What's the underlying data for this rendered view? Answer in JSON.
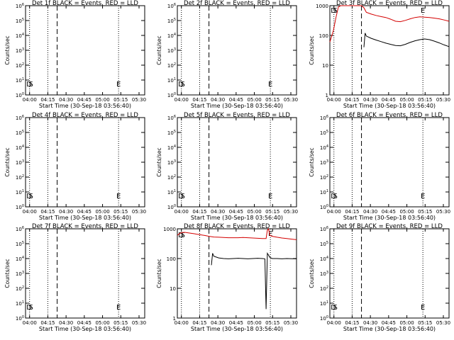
{
  "chart_data": {
    "type": "line",
    "layout": "3x3 grid of panels",
    "colors": {
      "events": "#000000",
      "lld": "#d40000"
    },
    "xlabel": "Start Time (30-Sep-18 03:56:40)",
    "ylabel": "Counts/sec",
    "x_ticks": [
      "04:00",
      "04:15",
      "04:30",
      "04:45",
      "05:00",
      "05:15",
      "05:30"
    ],
    "x_tick_minutes": [
      3.33,
      18.33,
      33.33,
      48.33,
      63.33,
      78.33,
      93.33
    ],
    "xlim_minutes_after_start": [
      0,
      98
    ],
    "legend_text": "BLACK = Events, RED = LLD",
    "markers": {
      "dashed_line_minutes": [
        26.0
      ],
      "dotted_line_minutes": [
        3.33,
        18.33,
        76.5
      ],
      "labels": [
        {
          "text": "D",
          "minute": 3.0,
          "note": "start marker (D/S)"
        },
        {
          "text": "S",
          "minute": 4.5
        },
        {
          "text": "E",
          "minute": 76.5
        }
      ]
    },
    "empty_panel_y": {
      "yscale": "log",
      "ylim": [
        1,
        1000000
      ],
      "ticks": [
        "10^0",
        "10^1",
        "10^2",
        "10^3",
        "10^4",
        "10^5",
        "10^6"
      ],
      "tick_values": [
        1,
        10,
        100,
        1000,
        10000,
        100000,
        1000000
      ]
    },
    "data_panel_y": {
      "yscale": "log",
      "ylim": [
        1,
        1000
      ],
      "ticks": [
        "1",
        "10",
        "100",
        "1000"
      ],
      "tick_values": [
        1,
        10,
        100,
        1000
      ]
    },
    "panels": [
      {
        "title": "Det 1f BLACK = Events, RED = LLD",
        "has_data": false,
        "series": []
      },
      {
        "title": "Det 2f BLACK = Events, RED = LLD",
        "has_data": false,
        "series": []
      },
      {
        "title": "Det 3f BLACK = Events, RED = LLD",
        "has_data": true,
        "series": [
          {
            "name": "LLD",
            "color": "red",
            "x": [
              0,
              3,
              5,
              7,
              9,
              11,
              13,
              15,
              17,
              19,
              21,
              23,
              25,
              26,
              28,
              30,
              34,
              38,
              42,
              46,
              50,
              54,
              58,
              62,
              66,
              70,
              74,
              78,
              82,
              86,
              90,
              94,
              98
            ],
            "y": [
              60,
              150,
              400,
              900,
              1000,
              1000,
              1000,
              1000,
              1000,
              1000,
              1000,
              1000,
              1000,
              1000,
              850,
              600,
              520,
              470,
              430,
              400,
              350,
              300,
              290,
              320,
              360,
              400,
              420,
              410,
              400,
              380,
              360,
              330,
              300
            ]
          },
          {
            "name": "Events",
            "color": "black",
            "x": [
              28,
              29,
              30,
              34,
              38,
              42,
              46,
              50,
              54,
              58,
              62,
              66,
              70,
              74,
              78,
              82,
              86,
              90,
              94,
              98
            ],
            "y": [
              40,
              120,
              95,
              80,
              70,
              62,
              55,
              50,
              46,
              45,
              50,
              58,
              66,
              72,
              76,
              72,
              64,
              56,
              48,
              42
            ]
          }
        ]
      },
      {
        "title": "Det 4f BLACK = Events, RED = LLD",
        "has_data": false,
        "series": []
      },
      {
        "title": "Det 5f BLACK = Events, RED = LLD",
        "has_data": false,
        "series": []
      },
      {
        "title": "Det 6f BLACK = Events, RED = LLD",
        "has_data": false,
        "series": []
      },
      {
        "title": "Det 7f BLACK = Events, RED = LLD",
        "has_data": false,
        "series": []
      },
      {
        "title": "Det 8f BLACK = Events, RED = LLD",
        "has_data": true,
        "series": [
          {
            "name": "LLD",
            "color": "red",
            "x": [
              0,
              2,
              4,
              6,
              8,
              10,
              12,
              14,
              16,
              18,
              20,
              22,
              24,
              26,
              30,
              34,
              38,
              42,
              46,
              50,
              54,
              58,
              62,
              66,
              70,
              73,
              74,
              75,
              76,
              78,
              82,
              86,
              90,
              94,
              98
            ],
            "y": [
              600,
              700,
              750,
              760,
              740,
              720,
              700,
              680,
              660,
              640,
              620,
              600,
              580,
              560,
              530,
              520,
              510,
              500,
              500,
              500,
              510,
              500,
              490,
              480,
              470,
              470,
              900,
              1000,
              600,
              560,
              520,
              490,
              470,
              450,
              430
            ]
          },
          {
            "name": "Events",
            "color": "black",
            "x": [
              28,
              29,
              30,
              34,
              38,
              42,
              46,
              50,
              54,
              58,
              62,
              66,
              70,
              72,
              73,
              74,
              75,
              76,
              78,
              82,
              86,
              90,
              94,
              98
            ],
            "y": [
              60,
              150,
              120,
              105,
              100,
              98,
              100,
              102,
              100,
              98,
              100,
              102,
              100,
              98,
              2,
              150,
              130,
              110,
              100,
              100,
              98,
              100,
              99,
              98
            ]
          }
        ]
      },
      {
        "title": "Det 9f BLACK = Events, RED = LLD",
        "has_data": false,
        "series": []
      }
    ]
  }
}
